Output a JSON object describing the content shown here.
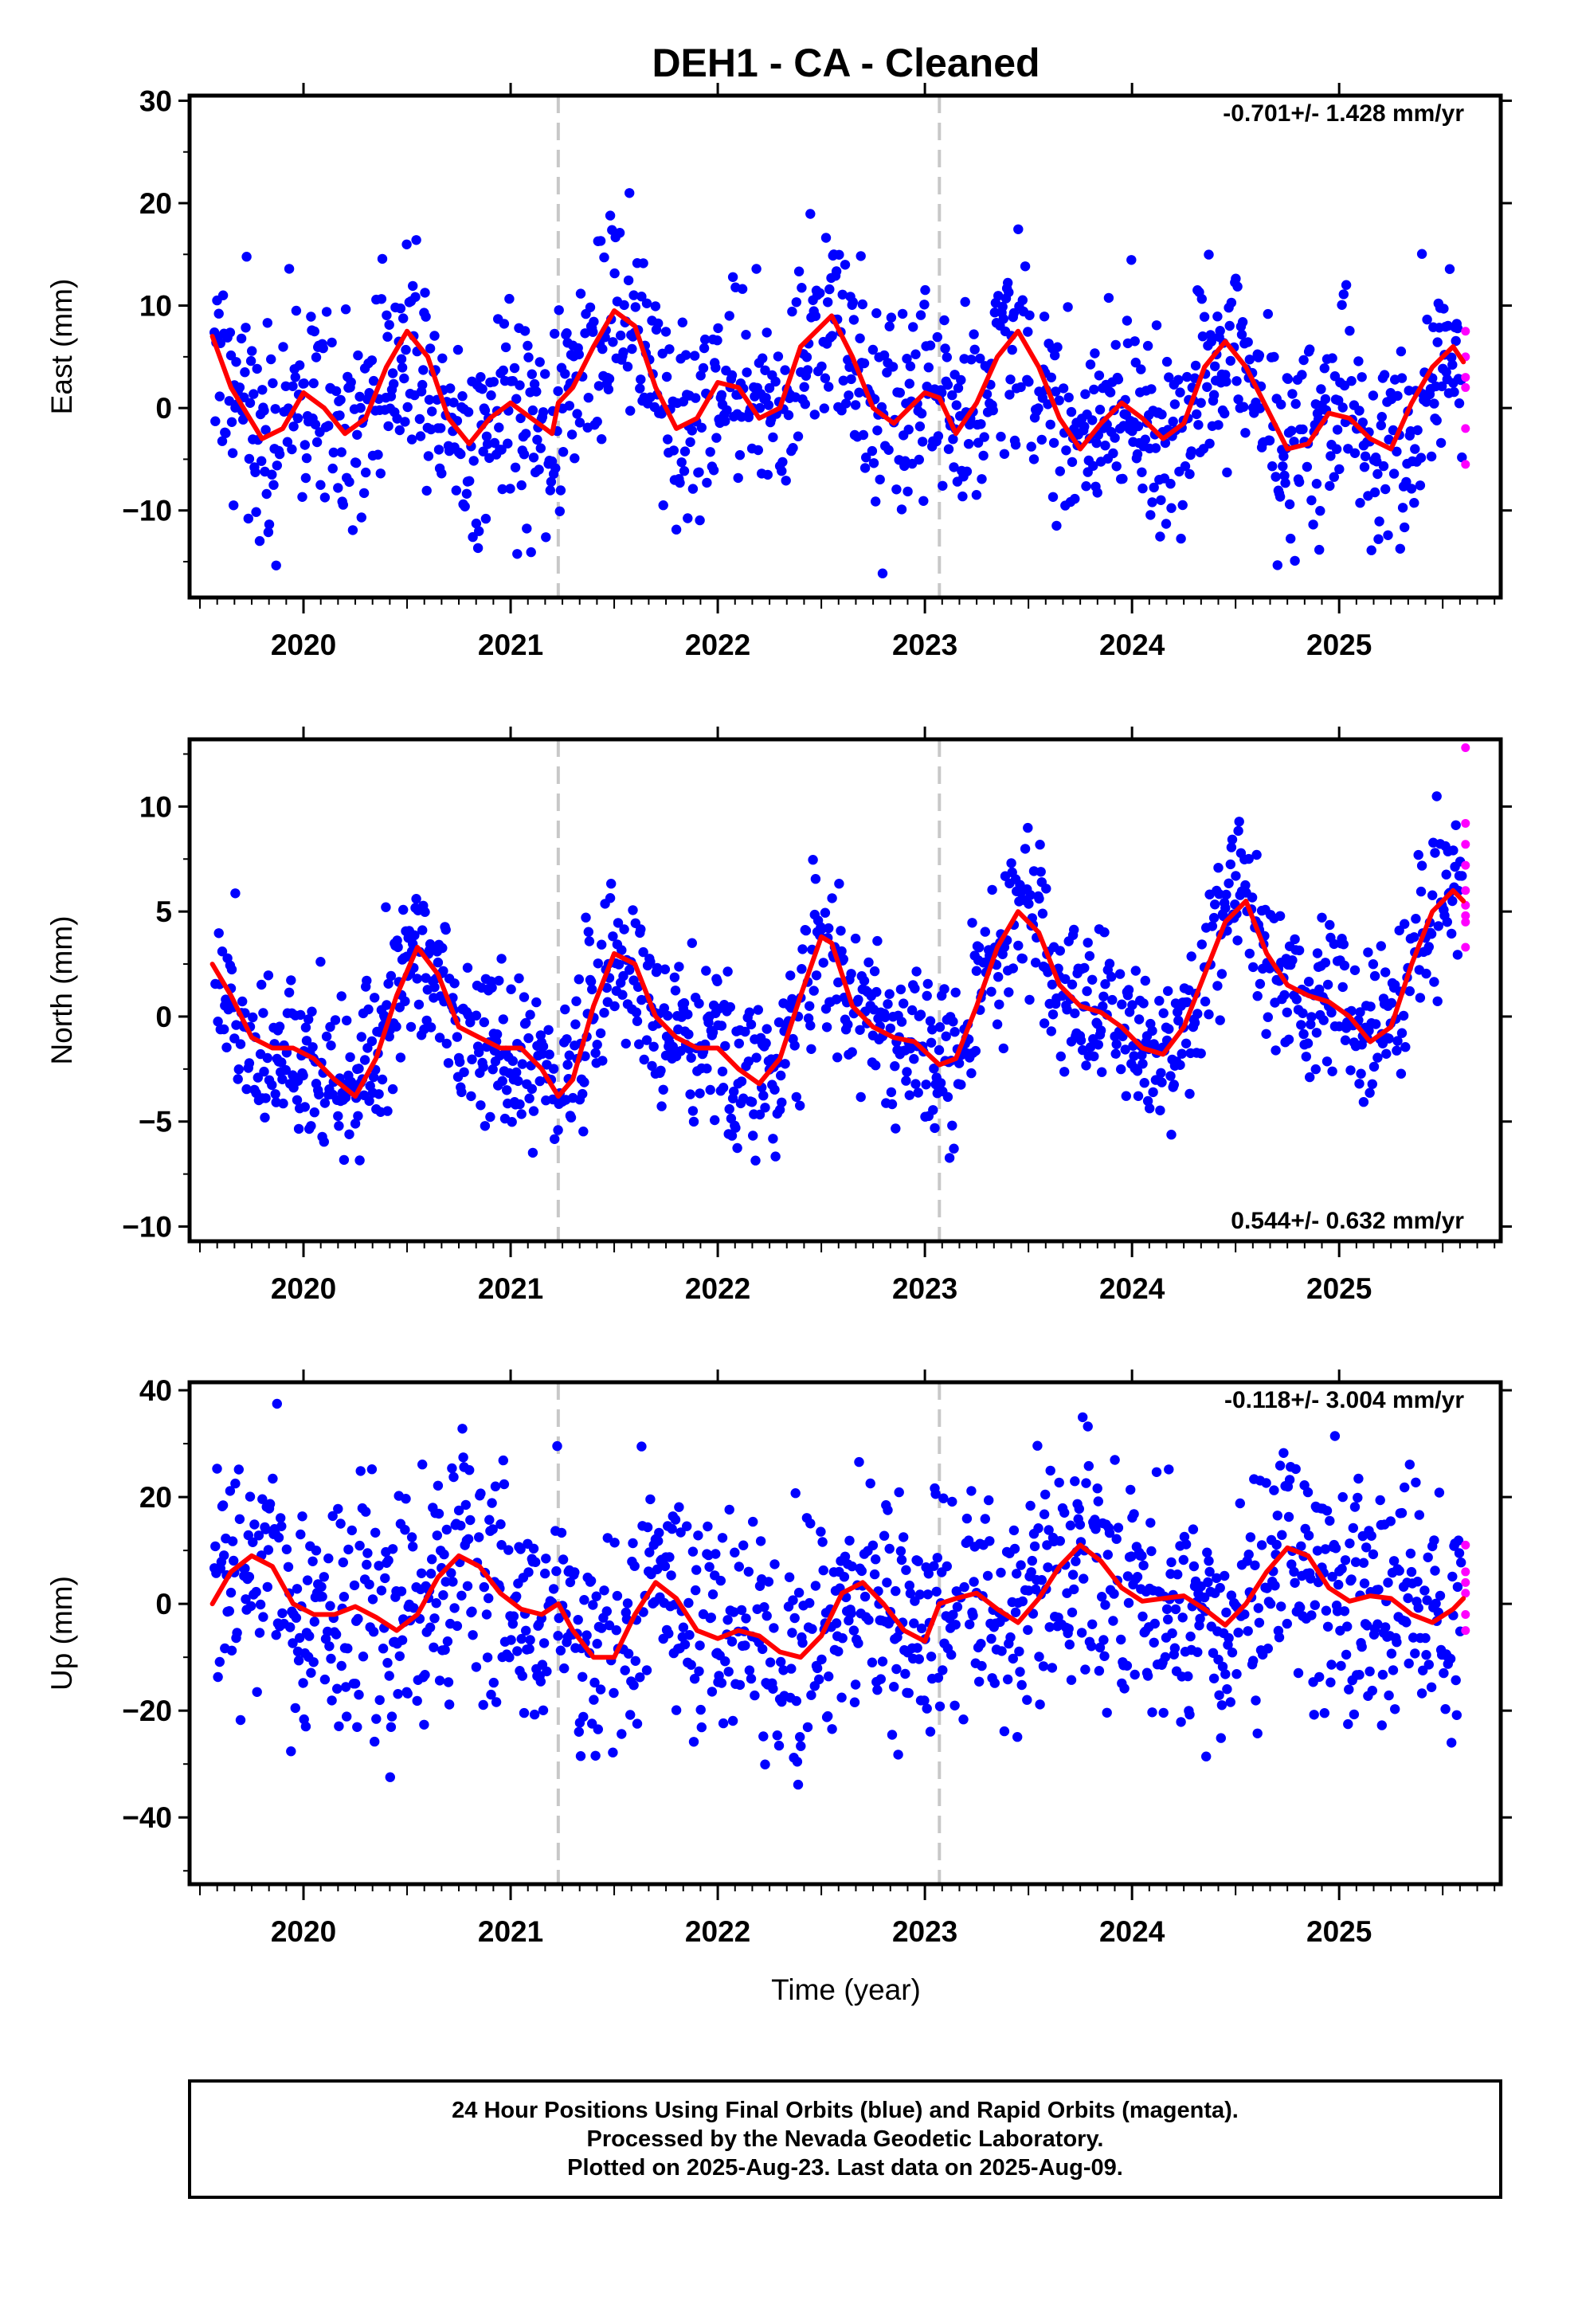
{
  "title": "DEH1  - CA - Cleaned",
  "colors": {
    "final_orbits": "#0000ff",
    "rapid_orbits": "#ff00ff",
    "model_fit": "#ff0000",
    "offset_line": "#c8c8c8",
    "frame": "#000000"
  },
  "chart_data": [
    {
      "type": "scatter",
      "name": "east-panel",
      "ylabel": "East (mm)",
      "xlabel": "",
      "xlim": [
        2019.45,
        2025.78
      ],
      "ylim": [
        -18.5,
        30.5
      ],
      "yticks": [
        -10,
        0,
        10,
        20,
        30
      ],
      "xticks": [
        2020,
        2021,
        2022,
        2023,
        2024,
        2025
      ],
      "rate_annotation": "-0.701+/- 1.428 mm/yr",
      "annotation_position": "top-right",
      "offsets": [
        2021.23,
        2023.07
      ],
      "fit": {
        "x": [
          2019.56,
          2019.65,
          2019.8,
          2019.9,
          2020.0,
          2020.1,
          2020.2,
          2020.3,
          2020.4,
          2020.5,
          2020.6,
          2020.7,
          2020.8,
          2020.9,
          2021.0,
          2021.1,
          2021.2,
          2021.23,
          2021.3,
          2021.4,
          2021.5,
          2021.6,
          2021.7,
          2021.8,
          2021.9,
          2022.0,
          2022.1,
          2022.2,
          2022.3,
          2022.4,
          2022.55,
          2022.65,
          2022.75,
          2022.85,
          2023.0,
          2023.07,
          2023.15,
          2023.25,
          2023.35,
          2023.45,
          2023.55,
          2023.65,
          2023.75,
          2023.85,
          2023.95,
          2024.05,
          2024.15,
          2024.25,
          2024.35,
          2024.45,
          2024.55,
          2024.65,
          2024.75,
          2024.85,
          2024.95,
          2025.05,
          2025.15,
          2025.25,
          2025.35,
          2025.45,
          2025.55,
          2025.6
        ],
        "y": [
          7,
          2,
          -3,
          -2,
          1.5,
          0,
          -2.5,
          -1,
          4,
          7.5,
          5,
          -1,
          -3.5,
          -1,
          0.5,
          -1,
          -2.5,
          0.5,
          2,
          6,
          9.5,
          8,
          2,
          -2,
          -1,
          2.5,
          2,
          -1,
          0,
          6,
          9,
          5,
          0,
          -1.5,
          1.5,
          1,
          -2.5,
          0.5,
          5,
          7.5,
          4,
          -1,
          -4,
          -1.5,
          0.5,
          -1,
          -3,
          -1.5,
          4,
          6.5,
          4,
          0,
          -4,
          -3.5,
          -0.5,
          -1,
          -3,
          -4,
          0.5,
          4,
          6,
          4.5
        ]
      },
      "rapid_points": {
        "x": [
          2025.61,
          2025.61,
          2025.61,
          2025.61,
          2025.61,
          2025.61
        ],
        "y": [
          7.5,
          5,
          3,
          2,
          -2,
          -5.5
        ]
      }
    },
    {
      "type": "scatter",
      "name": "north-panel",
      "ylabel": "North (mm)",
      "xlabel": "",
      "xlim": [
        2019.45,
        2025.78
      ],
      "ylim": [
        -10.7,
        13.2
      ],
      "yticks": [
        -10,
        -5,
        0,
        5,
        10
      ],
      "xticks": [
        2020,
        2021,
        2022,
        2023,
        2024,
        2025
      ],
      "rate_annotation": "0.544+/- 0.632 mm/yr",
      "annotation_position": "bottom-right",
      "offsets": [
        2021.23,
        2023.07
      ],
      "fit": {
        "x": [
          2019.56,
          2019.65,
          2019.75,
          2019.85,
          2019.95,
          2020.05,
          2020.15,
          2020.25,
          2020.35,
          2020.45,
          2020.55,
          2020.65,
          2020.75,
          2020.85,
          2020.95,
          2021.05,
          2021.15,
          2021.23,
          2021.3,
          2021.4,
          2021.5,
          2021.6,
          2021.7,
          2021.8,
          2021.9,
          2022.0,
          2022.1,
          2022.2,
          2022.3,
          2022.4,
          2022.5,
          2022.55,
          2022.65,
          2022.75,
          2022.85,
          2022.95,
          2023.07,
          2023.15,
          2023.25,
          2023.35,
          2023.45,
          2023.55,
          2023.65,
          2023.75,
          2023.85,
          2023.95,
          2024.05,
          2024.15,
          2024.25,
          2024.35,
          2024.45,
          2024.55,
          2024.65,
          2024.75,
          2024.85,
          2024.95,
          2025.05,
          2025.15,
          2025.25,
          2025.35,
          2025.45,
          2025.55,
          2025.6
        ],
        "y": [
          2.5,
          1,
          -1,
          -1.5,
          -1.5,
          -2,
          -3,
          -3.8,
          -2,
          1,
          3.3,
          2,
          -0.5,
          -1,
          -1.5,
          -1.5,
          -2.5,
          -3.8,
          -3,
          0.5,
          3,
          2.5,
          0,
          -1,
          -1.5,
          -1.5,
          -2.5,
          -3.2,
          -2,
          1,
          3.8,
          3.5,
          0.5,
          -0.5,
          -1,
          -1.2,
          -2.3,
          -2,
          0.5,
          3.3,
          5,
          4,
          1.5,
          0.5,
          0.2,
          -0.5,
          -1.5,
          -1.8,
          -0.5,
          2,
          4.5,
          5.5,
          3,
          1.5,
          1,
          0.7,
          0,
          -1.2,
          -0.5,
          2.5,
          5,
          6,
          5.5
        ]
      },
      "rapid_points": {
        "x": [
          2025.61,
          2025.61,
          2025.61,
          2025.61,
          2025.61,
          2025.61,
          2025.61,
          2025.61,
          2025.61
        ],
        "y": [
          12.8,
          9.2,
          8.2,
          7.2,
          6,
          5.3,
          4.8,
          4.5,
          3.3
        ]
      }
    },
    {
      "type": "scatter",
      "name": "up-panel",
      "ylabel": "Up (mm)",
      "xlabel": "Time (year)",
      "xlim": [
        2019.45,
        2025.78
      ],
      "ylim": [
        -52.5,
        41.5
      ],
      "yticks": [
        -40,
        -20,
        0,
        20,
        40
      ],
      "xticks": [
        2020,
        2021,
        2022,
        2023,
        2024,
        2025
      ],
      "rate_annotation": "-0.118+/- 3.004 mm/yr",
      "annotation_position": "top-right",
      "offsets": [
        2021.23,
        2023.07
      ],
      "fit": {
        "x": [
          2019.56,
          2019.65,
          2019.75,
          2019.85,
          2019.95,
          2020.05,
          2020.15,
          2020.25,
          2020.35,
          2020.45,
          2020.55,
          2020.65,
          2020.75,
          2020.85,
          2020.95,
          2021.05,
          2021.15,
          2021.23,
          2021.3,
          2021.4,
          2021.5,
          2021.6,
          2021.7,
          2021.8,
          2021.9,
          2022.0,
          2022.1,
          2022.2,
          2022.3,
          2022.4,
          2022.5,
          2022.6,
          2022.7,
          2022.8,
          2022.9,
          2023.0,
          2023.07,
          2023.15,
          2023.25,
          2023.35,
          2023.45,
          2023.55,
          2023.65,
          2023.75,
          2023.85,
          2023.95,
          2024.05,
          2024.15,
          2024.25,
          2024.35,
          2024.45,
          2024.55,
          2024.65,
          2024.75,
          2024.85,
          2024.95,
          2025.05,
          2025.15,
          2025.25,
          2025.35,
          2025.45,
          2025.55,
          2025.6
        ],
        "y": [
          0,
          6,
          9,
          7,
          0,
          -2,
          -2,
          -0.5,
          -2.5,
          -5,
          -2,
          5,
          9,
          7,
          2,
          -1,
          -2,
          0,
          -5,
          -10,
          -10,
          -2,
          4,
          1,
          -5,
          -6.5,
          -5,
          -6,
          -9,
          -10,
          -6,
          2,
          4,
          0,
          -5,
          -7,
          0,
          1,
          2,
          -1,
          -3.5,
          1,
          7,
          11,
          8,
          3,
          0.5,
          1,
          1.5,
          -1,
          -4,
          0,
          6,
          10.5,
          9,
          3,
          0.5,
          1.5,
          1,
          -2,
          -3.5,
          -1,
          1
        ]
      },
      "rapid_points": {
        "x": [
          2025.61,
          2025.61,
          2025.61,
          2025.61,
          2025.61,
          2025.61
        ],
        "y": [
          11,
          6,
          4,
          2,
          -2,
          -5
        ]
      }
    }
  ],
  "footer": {
    "line1": "24 Hour Positions Using Final Orbits (blue) and Rapid Orbits (magenta).",
    "line2": "Processed by the Nevada Geodetic Laboratory.",
    "line3": "Plotted on 2025-Aug-23. Last data on 2025-Aug-09."
  }
}
